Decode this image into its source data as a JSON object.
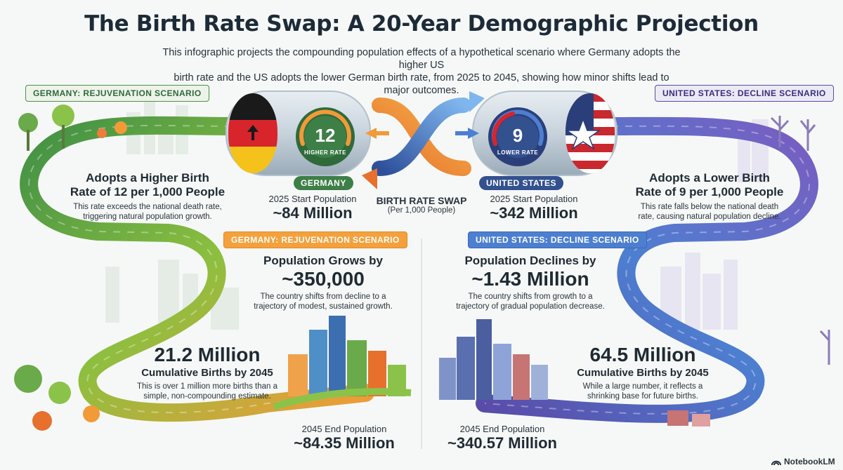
{
  "title": "The Birth Rate Swap: A 20-Year Demographic Projection",
  "subtitle_line1": "This infographic projects the compounding population effects of a hypothetical scenario where Germany adopts the higher US",
  "subtitle_line2": "birth rate and the US adopts the lower German birth rate, from 2025 to 2045, showing how minor shifts lead to major outcomes.",
  "germany": {
    "tag_top": "GERMANY: REJUVENATION SCENARIO",
    "tag_mid": "GERMANY: REJUVENATION SCENARIO",
    "adopt_line1": "Adopts a Higher Birth",
    "adopt_line2": "Rate of 12 per 1,000 People",
    "adopt_note_line1": "This rate exceeds the national death rate,",
    "adopt_note_line2": "triggering natural population growth.",
    "gauge_value": "12",
    "gauge_label": "HIGHER RATE",
    "pill": "GERMANY",
    "start_label": "2025 Start Population",
    "start_value": "~84 Million",
    "change_label": "Population Grows by",
    "change_value": "~350,000",
    "change_note_line1": "The country shifts from decline to a",
    "change_note_line2": "trajectory of modest, sustained growth.",
    "births_value": "21.2 Million",
    "births_label": "Cumulative Births by 2045",
    "births_note_line1": "This is over 1 million more births than a",
    "births_note_line2": "simple, non-compounding estimate.",
    "end_label": "2045 End Population",
    "end_value": "~84.35 Million"
  },
  "us": {
    "tag_top": "UNITED STATES: DECLINE SCENARIO",
    "tag_mid": "UNITED STATES: DECLINE SCENARIO",
    "adopt_line1": "Adopts a Lower Birth",
    "adopt_line2": "Rate of 9 per 1,000 People",
    "adopt_note_line1": "This rate falls below the national death",
    "adopt_note_line2": "rate, causing natural population decline.",
    "gauge_value": "9",
    "gauge_label": "LOWER RATE",
    "pill": "UNITED STATES",
    "start_label": "2025 Start Population",
    "start_value": "~342 Million",
    "change_label": "Population Declines by",
    "change_value": "~1.43 Million",
    "change_note_line1": "The country shifts from growth to a",
    "change_note_line2": "trajectory of gradual population decrease.",
    "births_value": "64.5 Million",
    "births_label": "Cumulative Births by 2045",
    "births_note_line1": "While a large number, it reflects a",
    "births_note_line2": "shrinking base for future births.",
    "end_label": "2045 End Population",
    "end_value": "~340.57 Million"
  },
  "swap": {
    "label": "BIRTH RATE SWAP",
    "unit": "(Per 1,000 People)"
  },
  "brand": "NotebookLM",
  "colors": {
    "germany_green": "#4f8f4b",
    "germany_orange": "#f29a38",
    "us_blue": "#4d7fd1",
    "us_purple": "#6b55b3"
  }
}
